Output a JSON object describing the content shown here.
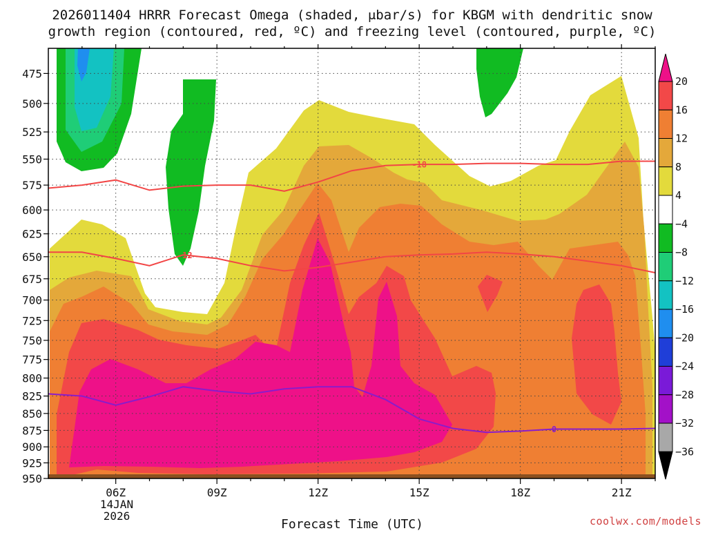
{
  "title_line1": "2026011404 HRRR Forecast Omega (shaded, μbar/s) for KBGM with dendritic snow",
  "title_line2": "growth region (contoured, red, ºC) and freezing level (contoured, purple, ºC)",
  "credit": "coolwx.com/models",
  "chart_data": {
    "type": "heatmap",
    "xlabel": "Forecast Time (UTC)",
    "ylabel": "",
    "x_ticks": [
      "06Z",
      "09Z",
      "12Z",
      "15Z",
      "18Z",
      "21Z"
    ],
    "x_date_label": [
      "14JAN",
      "2026"
    ],
    "x_range_hours_utc": [
      4.0,
      22.0
    ],
    "y_ticks": [
      475,
      500,
      525,
      550,
      575,
      600,
      625,
      650,
      675,
      700,
      725,
      750,
      775,
      800,
      825,
      850,
      875,
      900,
      925,
      950
    ],
    "y_range": [
      950,
      455
    ],
    "y_scale": "pressure (inverted)",
    "grid": true,
    "colorbar": {
      "labels": [
        "20",
        "16",
        "12",
        "8",
        "4",
        "−4",
        "−8",
        "−12",
        "−16",
        "−20",
        "−24",
        "−28",
        "−32",
        "−36"
      ],
      "colors": [
        "#ee1188",
        "#f24848",
        "#ef7f33",
        "#e4a83a",
        "#e3da3c",
        "#ffffff",
        "#11bb22",
        "#1fcd77",
        "#13c2c2",
        "#1f8eef",
        "#1f3ed8",
        "#7a1ad8",
        "#a311c8",
        "#a8a8a8",
        "#000000"
      ]
    },
    "contours": {
      "dgz_top": {
        "label": "-18",
        "color": "#f24545",
        "points": [
          [
            4.0,
            578
          ],
          [
            5.0,
            575
          ],
          [
            6.0,
            570
          ],
          [
            7.0,
            580
          ],
          [
            8.0,
            576
          ],
          [
            9.0,
            575
          ],
          [
            10.0,
            575
          ],
          [
            11.0,
            581
          ],
          [
            12.0,
            572
          ],
          [
            13.0,
            561
          ],
          [
            14.0,
            556
          ],
          [
            15.0,
            555
          ],
          [
            16.0,
            555
          ],
          [
            17.0,
            554
          ],
          [
            18.0,
            554
          ],
          [
            19.0,
            555
          ],
          [
            20.0,
            555
          ],
          [
            21.0,
            552
          ],
          [
            22.0,
            552
          ]
        ]
      },
      "dgz_bottom": {
        "label": "-12",
        "color": "#f24545",
        "points": [
          [
            4.0,
            645
          ],
          [
            5.0,
            645
          ],
          [
            6.0,
            652
          ],
          [
            7.0,
            660
          ],
          [
            8.0,
            648
          ],
          [
            9.0,
            652
          ],
          [
            10.0,
            660
          ],
          [
            11.0,
            666
          ],
          [
            12.0,
            662
          ],
          [
            13.0,
            656
          ],
          [
            14.0,
            650
          ],
          [
            15.0,
            648
          ],
          [
            16.0,
            647
          ],
          [
            17.0,
            645
          ],
          [
            18.0,
            647
          ],
          [
            19.0,
            650
          ],
          [
            20.0,
            655
          ],
          [
            21.0,
            660
          ],
          [
            22.0,
            668
          ]
        ]
      },
      "freezing_level": {
        "label": "0",
        "color": "#8a1ccb",
        "points": [
          [
            4.0,
            822
          ],
          [
            5.0,
            825
          ],
          [
            6.0,
            838
          ],
          [
            7.0,
            826
          ],
          [
            8.0,
            812
          ],
          [
            9.0,
            818
          ],
          [
            10.0,
            822
          ],
          [
            11.0,
            815
          ],
          [
            12.0,
            812
          ],
          [
            13.0,
            812
          ],
          [
            14.0,
            830
          ],
          [
            15.0,
            858
          ],
          [
            16.0,
            872
          ],
          [
            17.0,
            878
          ],
          [
            18.0,
            876
          ],
          [
            19.0,
            873
          ],
          [
            20.0,
            873
          ],
          [
            21.0,
            873
          ],
          [
            22.0,
            872
          ]
        ]
      }
    }
  }
}
